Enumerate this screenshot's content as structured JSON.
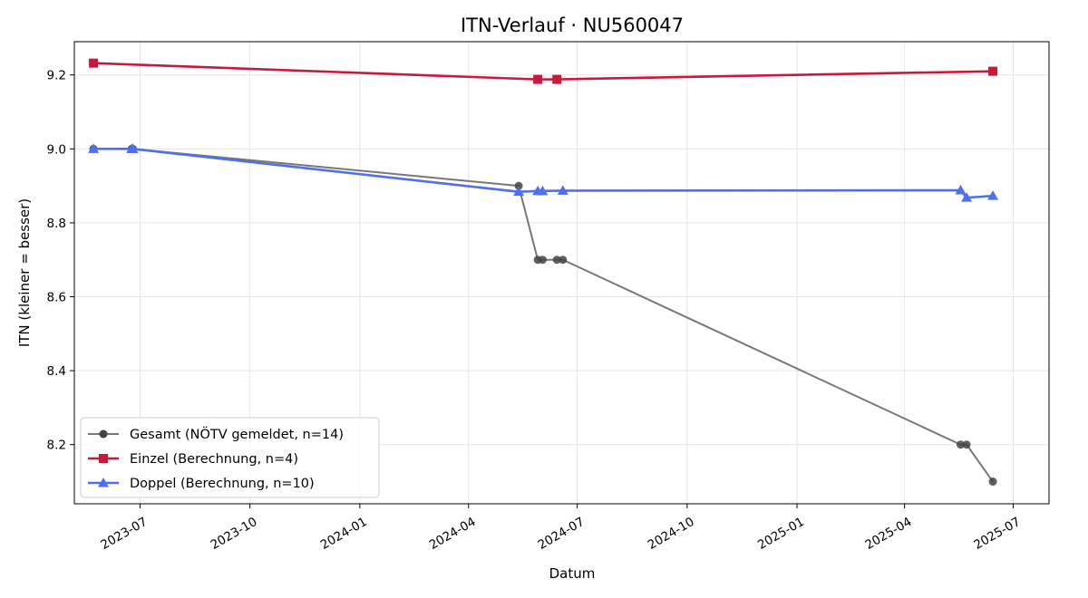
{
  "chart_data": {
    "type": "line",
    "title": "ITN-Verlauf · NU560047",
    "xlabel": "Datum",
    "ylabel": "ITN  (kleiner = besser)",
    "x_type": "date",
    "xlim": [
      "2023-05-07",
      "2025-07-31"
    ],
    "ylim": [
      8.04,
      9.29
    ],
    "x_ticks": [
      "2023-07",
      "2023-10",
      "2024-01",
      "2024-04",
      "2024-07",
      "2024-10",
      "2025-01",
      "2025-04",
      "2025-07"
    ],
    "y_ticks": [
      "8.2",
      "8.4",
      "8.6",
      "8.8",
      "9.0",
      "9.2"
    ],
    "grid": true,
    "legend_position": "lower-left",
    "series": [
      {
        "name": "Gesamt (NÖTV gemeldet, n=14)",
        "color": "#555555",
        "marker": "circle",
        "x": [
          "2023-05-23",
          "2023-06-24",
          "2023-06-25",
          "2024-05-13",
          "2024-05-29",
          "2024-06-02",
          "2024-06-14",
          "2024-06-19",
          "2025-05-18",
          "2025-05-23",
          "2025-06-14"
        ],
        "y": [
          9.0,
          9.0,
          9.0,
          8.9,
          8.7,
          8.7,
          8.7,
          8.7,
          8.2,
          8.2,
          8.1
        ]
      },
      {
        "name": "Einzel (Berechnung, n=4)",
        "color": "#c8193c",
        "marker": "square",
        "x": [
          "2023-05-23",
          "2024-05-29",
          "2024-06-14",
          "2025-06-14"
        ],
        "y": [
          9.232,
          9.188,
          9.188,
          9.21
        ]
      },
      {
        "name": "Doppel (Berechnung, n=10)",
        "color": "#4f6ef0",
        "marker": "triangle",
        "x": [
          "2023-05-23",
          "2023-06-24",
          "2023-06-25",
          "2024-05-13",
          "2024-05-29",
          "2024-06-02",
          "2024-06-19",
          "2025-05-18",
          "2025-05-23",
          "2025-06-14"
        ],
        "y": [
          9.0,
          9.0,
          9.0,
          8.884,
          8.886,
          8.886,
          8.887,
          8.888,
          8.868,
          8.873
        ]
      }
    ]
  }
}
